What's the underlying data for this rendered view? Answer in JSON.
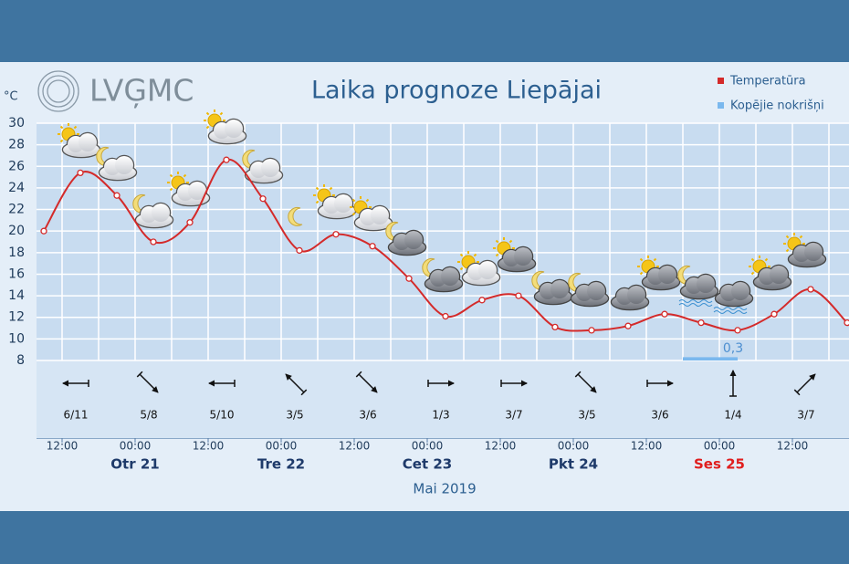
{
  "header": {
    "logo": "LVĢMC",
    "unit": "°C"
  },
  "chart_data": {
    "type": "line",
    "title": "Laika prognoze Liepājai",
    "series": [
      {
        "name": "Temperatūra",
        "color": "#d42a2a",
        "values": [
          20,
          25.4,
          23.3,
          19,
          20.8,
          26.6,
          23,
          18.2,
          19.7,
          18.6,
          15.6,
          12.1,
          13.6,
          14,
          11.1,
          10.8,
          11.2,
          12.3,
          11.5,
          10.8,
          12.3,
          14.6,
          11.5
        ]
      }
    ],
    "precipitation": {
      "name": "Kopējie nokrišņi",
      "color": "#7ab8ee",
      "value": 0.3,
      "label": "0,3"
    },
    "ylim": [
      8,
      30
    ],
    "yticks": [
      8,
      10,
      12,
      14,
      16,
      18,
      20,
      22,
      24,
      26,
      28,
      30
    ],
    "grid": true,
    "times": [
      "12:00",
      "00:00",
      "12:00",
      "00:00",
      "12:00",
      "00:00",
      "12:00",
      "00:00",
      "12:00",
      "00:00",
      "12:00"
    ],
    "days": [
      null,
      {
        "label": "Otr 21"
      },
      null,
      {
        "label": "Tre 22"
      },
      null,
      {
        "label": "Cet 23"
      },
      null,
      {
        "label": "Pkt 24"
      },
      null,
      {
        "label": "Ses 25",
        "color": "#e01e1e"
      },
      null
    ],
    "xlabel": "Mai 2019",
    "wind": [
      {
        "label": "6/11",
        "direction": 270
      },
      {
        "label": "5/8",
        "direction": 135
      },
      {
        "label": "5/10",
        "direction": 270
      },
      {
        "label": "3/5",
        "direction": 315
      },
      {
        "label": "3/6",
        "direction": 135
      },
      {
        "label": "1/3",
        "direction": 90
      },
      {
        "label": "3/7",
        "direction": 90
      },
      {
        "label": "3/5",
        "direction": 135
      },
      {
        "label": "3/6",
        "direction": 90
      },
      {
        "label": "1/4",
        "direction": 0
      },
      {
        "label": "3/7",
        "direction": 45
      }
    ]
  }
}
